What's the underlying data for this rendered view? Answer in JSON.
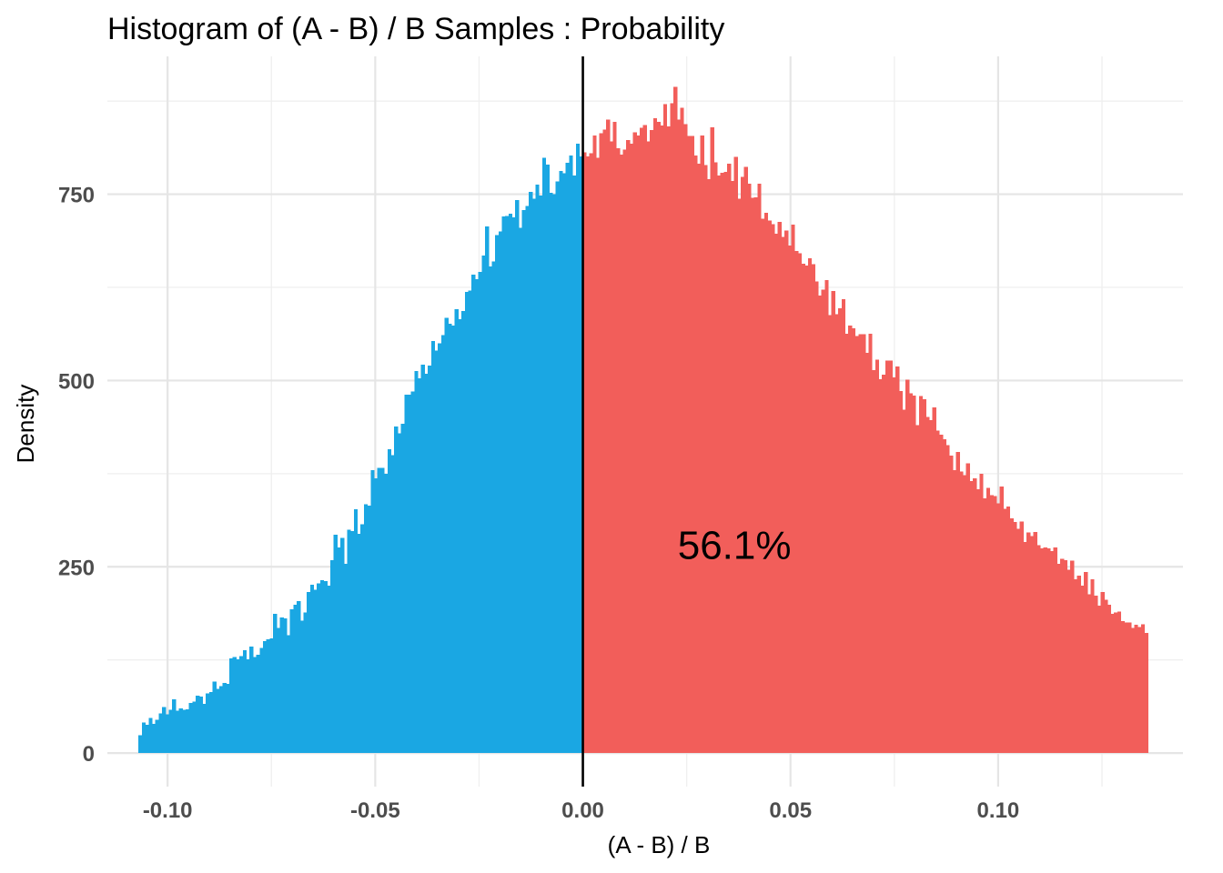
{
  "chart_data": {
    "type": "bar",
    "title": "Histogram of (A - B) / B Samples : Probability",
    "xlabel": "(A - B) / B",
    "ylabel": "Density",
    "annotation": "56.1%",
    "xlim": [
      -0.1145,
      0.1445
    ],
    "ylim": [
      -45,
      935
    ],
    "x_ticks": [
      -0.1,
      -0.05,
      0.0,
      0.05,
      0.1
    ],
    "x_tick_labels": [
      "-0.10",
      "-0.05",
      "0.00",
      "0.05",
      "0.10"
    ],
    "y_ticks": [
      0,
      250,
      500,
      750
    ],
    "y_tick_labels": [
      "0",
      "250",
      "500",
      "750"
    ],
    "vline_x": 0.0,
    "grid": true,
    "legend": "none",
    "bin_range": [
      -0.107,
      0.136
    ],
    "bin_width": 0.00081,
    "negative_color": "#1AA7E3",
    "positive_color": "#F25E5A",
    "vline_color": "#000000",
    "values": [
      24,
      41,
      38,
      47,
      39,
      45,
      53,
      62,
      52,
      58,
      72,
      57,
      60,
      58,
      59,
      67,
      69,
      77,
      76,
      66,
      80,
      82,
      96,
      86,
      90,
      94,
      93,
      127,
      129,
      126,
      130,
      138,
      126,
      143,
      129,
      132,
      141,
      150,
      153,
      154,
      187,
      168,
      182,
      181,
      158,
      193,
      199,
      204,
      178,
      189,
      216,
      226,
      219,
      228,
      232,
      231,
      225,
      259,
      293,
      276,
      289,
      254,
      300,
      298,
      327,
      294,
      307,
      334,
      332,
      380,
      369,
      383,
      383,
      375,
      408,
      400,
      438,
      429,
      442,
      481,
      481,
      485,
      513,
      503,
      521,
      509,
      520,
      553,
      540,
      550,
      561,
      584,
      576,
      574,
      596,
      582,
      593,
      619,
      621,
      642,
      636,
      646,
      668,
      707,
      653,
      660,
      695,
      700,
      720,
      721,
      724,
      719,
      742,
      705,
      729,
      734,
      753,
      744,
      763,
      748,
      799,
      790,
      752,
      750,
      767,
      781,
      778,
      792,
      802,
      775,
      818,
      801,
      806,
      801,
      805,
      829,
      799,
      832,
      837,
      850,
      821,
      847,
      812,
      803,
      810,
      823,
      818,
      833,
      829,
      839,
      843,
      821,
      836,
      852,
      847,
      842,
      871,
      841,
      872,
      894,
      850,
      866,
      844,
      828,
      828,
      802,
      791,
      829,
      789,
      770,
      840,
      793,
      775,
      779,
      780,
      791,
      768,
      800,
      744,
      773,
      787,
      764,
      745,
      746,
      764,
      717,
      725,
      715,
      710,
      697,
      713,
      693,
      701,
      681,
      709,
      674,
      671,
      657,
      654,
      664,
      656,
      633,
      614,
      622,
      635,
      588,
      620,
      589,
      597,
      609,
      563,
      574,
      570,
      560,
      562,
      562,
      537,
      563,
      514,
      528,
      502,
      508,
      527,
      527,
      504,
      519,
      486,
      461,
      501,
      483,
      480,
      440,
      479,
      475,
      451,
      447,
      464,
      433,
      427,
      421,
      413,
      399,
      380,
      404,
      378,
      373,
      389,
      365,
      369,
      354,
      375,
      342,
      356,
      346,
      345,
      335,
      358,
      328,
      331,
      315,
      310,
      301,
      311,
      283,
      296,
      291,
      297,
      279,
      275,
      276,
      275,
      271,
      276,
      254,
      261,
      259,
      246,
      258,
      233,
      238,
      225,
      243,
      213,
      233,
      211,
      198,
      216,
      206,
      199,
      187,
      189,
      190,
      177,
      175,
      175,
      168,
      172,
      169,
      173,
      161,
      163,
      163,
      150,
      168,
      146,
      142,
      132,
      138,
      133,
      116,
      128,
      134,
      139,
      126,
      126,
      115,
      120,
      113,
      120,
      114,
      116,
      109,
      100,
      107,
      98,
      98,
      94,
      90,
      97,
      93,
      92,
      87,
      76,
      78,
      84,
      75,
      84,
      73,
      67,
      80,
      70,
      74,
      70,
      61,
      68,
      58,
      56,
      55,
      65,
      59,
      52,
      50,
      48,
      52,
      47,
      41,
      46,
      48,
      48,
      43,
      52,
      40,
      40,
      43,
      36,
      32,
      43,
      34,
      37,
      35,
      36,
      29,
      30,
      27,
      29,
      27,
      25,
      26,
      31,
      25,
      31,
      28,
      26,
      21,
      26,
      26,
      19,
      23,
      22,
      20,
      22,
      20,
      17,
      17
    ]
  }
}
